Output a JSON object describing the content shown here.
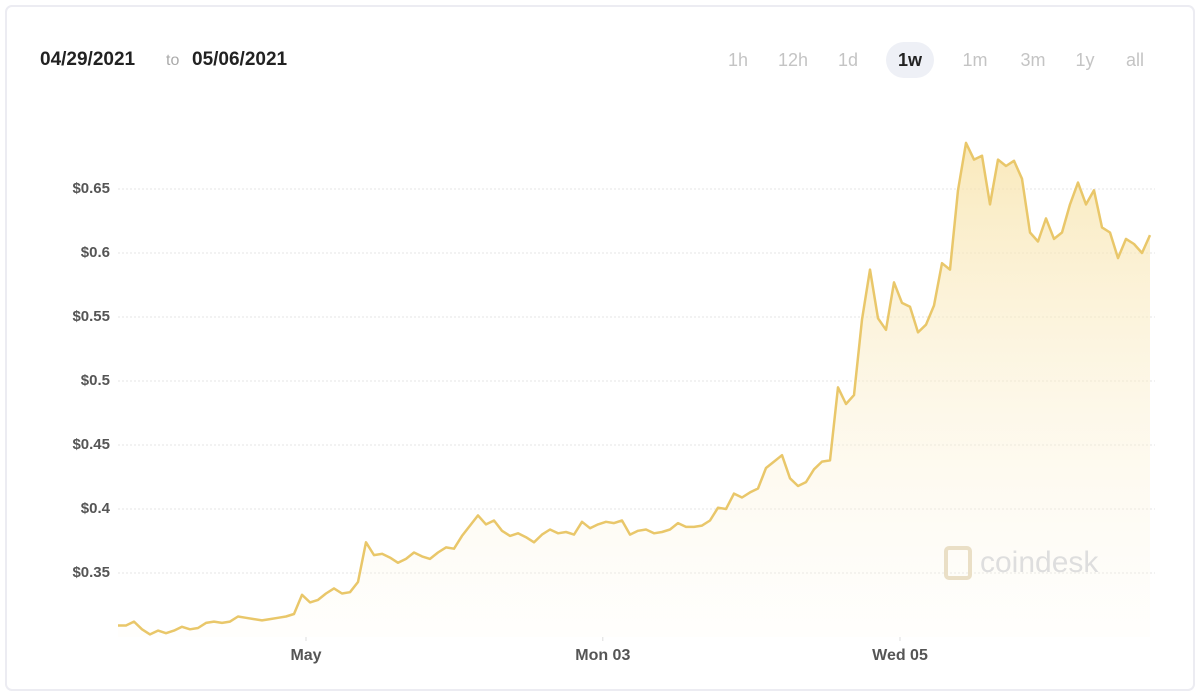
{
  "header": {
    "from": "04/29/2021",
    "connector": "to",
    "to": "05/06/2021"
  },
  "range_buttons": [
    "1h",
    "12h",
    "1d",
    "1w",
    "1m",
    "3m",
    "1y",
    "all"
  ],
  "selected_range": "1w",
  "watermark": "coindesk",
  "chart_data": {
    "type": "line",
    "color": "#e9c76a",
    "area_fill": true,
    "grid": true,
    "values": [
      0.309,
      0.309,
      0.312,
      0.306,
      0.302,
      0.305,
      0.303,
      0.305,
      0.308,
      0.306,
      0.307,
      0.311,
      0.312,
      0.311,
      0.312,
      0.316,
      0.315,
      0.314,
      0.313,
      0.314,
      0.315,
      0.316,
      0.318,
      0.333,
      0.327,
      0.329,
      0.334,
      0.338,
      0.334,
      0.335,
      0.343,
      0.374,
      0.364,
      0.365,
      0.362,
      0.358,
      0.361,
      0.366,
      0.363,
      0.361,
      0.366,
      0.37,
      0.369,
      0.379,
      0.387,
      0.395,
      0.388,
      0.391,
      0.383,
      0.379,
      0.381,
      0.378,
      0.374,
      0.38,
      0.384,
      0.381,
      0.382,
      0.38,
      0.39,
      0.385,
      0.388,
      0.39,
      0.389,
      0.391,
      0.38,
      0.383,
      0.384,
      0.381,
      0.382,
      0.384,
      0.389,
      0.386,
      0.386,
      0.387,
      0.391,
      0.401,
      0.4,
      0.412,
      0.409,
      0.413,
      0.416,
      0.432,
      0.437,
      0.442,
      0.424,
      0.418,
      0.421,
      0.431,
      0.437,
      0.438,
      0.495,
      0.482,
      0.489,
      0.548,
      0.587,
      0.549,
      0.54,
      0.577,
      0.561,
      0.558,
      0.538,
      0.544,
      0.559,
      0.592,
      0.587,
      0.649,
      0.686,
      0.673,
      0.676,
      0.638,
      0.673,
      0.668,
      0.672,
      0.658,
      0.616,
      0.609,
      0.627,
      0.611,
      0.616,
      0.638,
      0.655,
      0.638,
      0.649,
      0.62,
      0.616,
      0.596,
      0.611,
      0.607,
      0.6,
      0.614
    ],
    "xlim": [
      0,
      129
    ],
    "xticks": [
      {
        "value": 23.5,
        "label": "May"
      },
      {
        "value": 60.6,
        "label": "Mon 03"
      },
      {
        "value": 97.75,
        "label": "Wed 05"
      }
    ],
    "ylim": [
      0.3,
      0.7
    ],
    "yticks": [
      {
        "value": 0.35,
        "label": "$0.35"
      },
      {
        "value": 0.4,
        "label": "$0.4"
      },
      {
        "value": 0.45,
        "label": "$0.45"
      },
      {
        "value": 0.5,
        "label": "$0.5"
      },
      {
        "value": 0.55,
        "label": "$0.55"
      },
      {
        "value": 0.6,
        "label": "$0.6"
      },
      {
        "value": 0.65,
        "label": "$0.65"
      }
    ]
  }
}
